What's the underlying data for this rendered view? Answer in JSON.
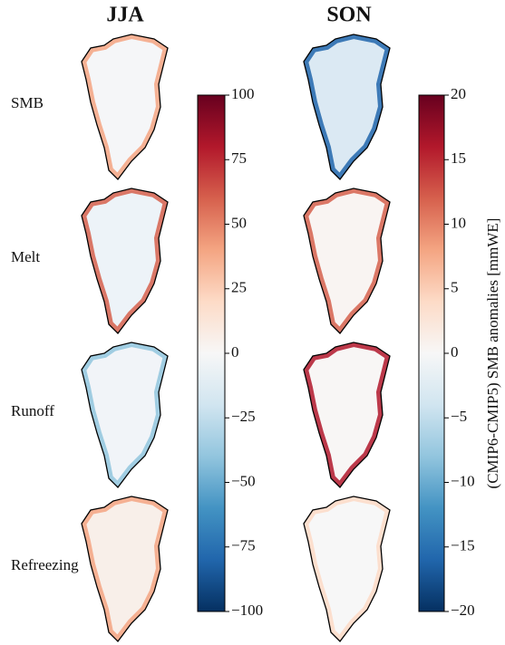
{
  "columns": [
    "JJA",
    "SON"
  ],
  "rows": [
    "SMB",
    "Melt",
    "Runoff",
    "Refreezing"
  ],
  "colorbars": [
    {
      "lim": [
        -100,
        100
      ],
      "ticks": [
        100,
        75,
        50,
        25,
        0,
        {
          "value": -25,
          "label": "−25"
        },
        {
          "value": -50,
          "label": "−50"
        },
        {
          "value": -75,
          "label": "−75"
        },
        {
          "value": -100,
          "label": "−100"
        }
      ]
    },
    {
      "lim": [
        -20,
        20
      ],
      "ticks": [
        20,
        15,
        10,
        5,
        0,
        {
          "value": -5,
          "label": "−5"
        },
        {
          "value": -10,
          "label": "−10"
        },
        {
          "value": -15,
          "label": "−15"
        },
        {
          "value": -20,
          "label": "−20"
        }
      ],
      "label": "(CMIP6-CMIP5) SMB anomalies [mmWE]"
    }
  ]
}
